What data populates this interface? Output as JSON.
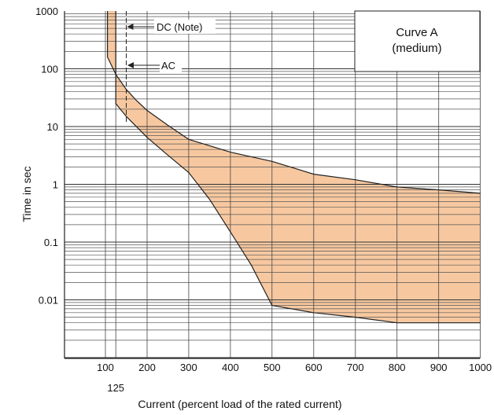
{
  "chart_data": {
    "type": "area",
    "xlabel": "Current (percent load of the rated current)",
    "ylabel": "Time in sec",
    "xlim": [
      0,
      1000
    ],
    "ylim": [
      0.001,
      1000
    ],
    "yscale": "log",
    "xticks": [
      "100",
      "200",
      "300",
      "400",
      "500",
      "600",
      "700",
      "800",
      "900",
      "1000"
    ],
    "xtick_values": [
      100,
      200,
      300,
      400,
      500,
      600,
      700,
      800,
      900,
      1000
    ],
    "extra_xtick": {
      "label": "125",
      "value": 125
    },
    "yticks": [
      "1000",
      "100",
      "10",
      "1",
      "0.1",
      "0.01"
    ],
    "ytick_values": [
      1000,
      100,
      10,
      1,
      0.1,
      0.01
    ],
    "legend": {
      "line1": "Curve A",
      "line2": "(medium)",
      "position": "top-right"
    },
    "fill_color": "#f7c8a0",
    "upper_curve": {
      "x": [
        105,
        105,
        125,
        150,
        175,
        200,
        250,
        300,
        400,
        500,
        600,
        700,
        800,
        900,
        1000
      ],
      "y": [
        1000,
        160,
        80,
        44,
        28,
        19,
        10.5,
        6,
        3.6,
        2.5,
        1.5,
        1.2,
        0.9,
        0.8,
        0.7
      ]
    },
    "lower_curve": {
      "x": [
        125,
        125,
        150,
        200,
        250,
        300,
        350,
        400,
        450,
        500,
        600,
        700,
        800,
        900,
        1000
      ],
      "y": [
        1000,
        25,
        15,
        6.5,
        3.2,
        1.6,
        0.55,
        0.15,
        0.04,
        0.008,
        0.006,
        0.005,
        0.004,
        0.004,
        0.004
      ]
    },
    "ac_line": {
      "label": "AC",
      "x": 125
    },
    "dc_line": {
      "label": "DC (Note)",
      "x": 150
    }
  }
}
